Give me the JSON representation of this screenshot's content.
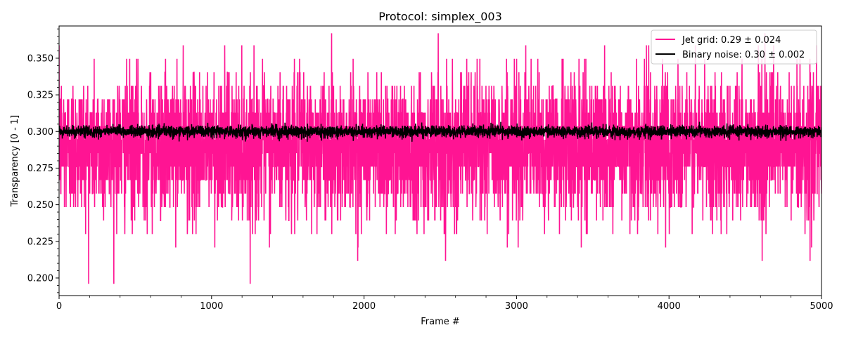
{
  "chart_data": {
    "type": "line",
    "title": "Protocol: simplex_003",
    "xlabel": "Frame #",
    "ylabel": "Transparency [0 - 1]",
    "xlim": [
      0,
      5000
    ],
    "ylim": [
      0.188,
      0.372
    ],
    "xticks": [
      0,
      1000,
      2000,
      3000,
      4000,
      5000
    ],
    "xtick_labels": [
      "0",
      "1000",
      "2000",
      "3000",
      "4000",
      "5000"
    ],
    "yticks": [
      0.2,
      0.225,
      0.25,
      0.275,
      0.3,
      0.325,
      0.35
    ],
    "ytick_labels": [
      "0.200",
      "0.225",
      "0.250",
      "0.275",
      "0.300",
      "0.325",
      "0.350"
    ],
    "grid": false,
    "legend_position": "top-right",
    "series": [
      {
        "name": "Jet grid: 0.29 ± 0.024",
        "color": "#ff1493",
        "mean": 0.29,
        "std": 0.024,
        "min": 0.196,
        "max": 0.367,
        "n_frames": 5000
      },
      {
        "name": "Binary noise: 0.30 ± 0.002",
        "color": "#000000",
        "mean": 0.3,
        "std": 0.002,
        "min": 0.293,
        "max": 0.307,
        "n_frames": 5000
      }
    ]
  }
}
